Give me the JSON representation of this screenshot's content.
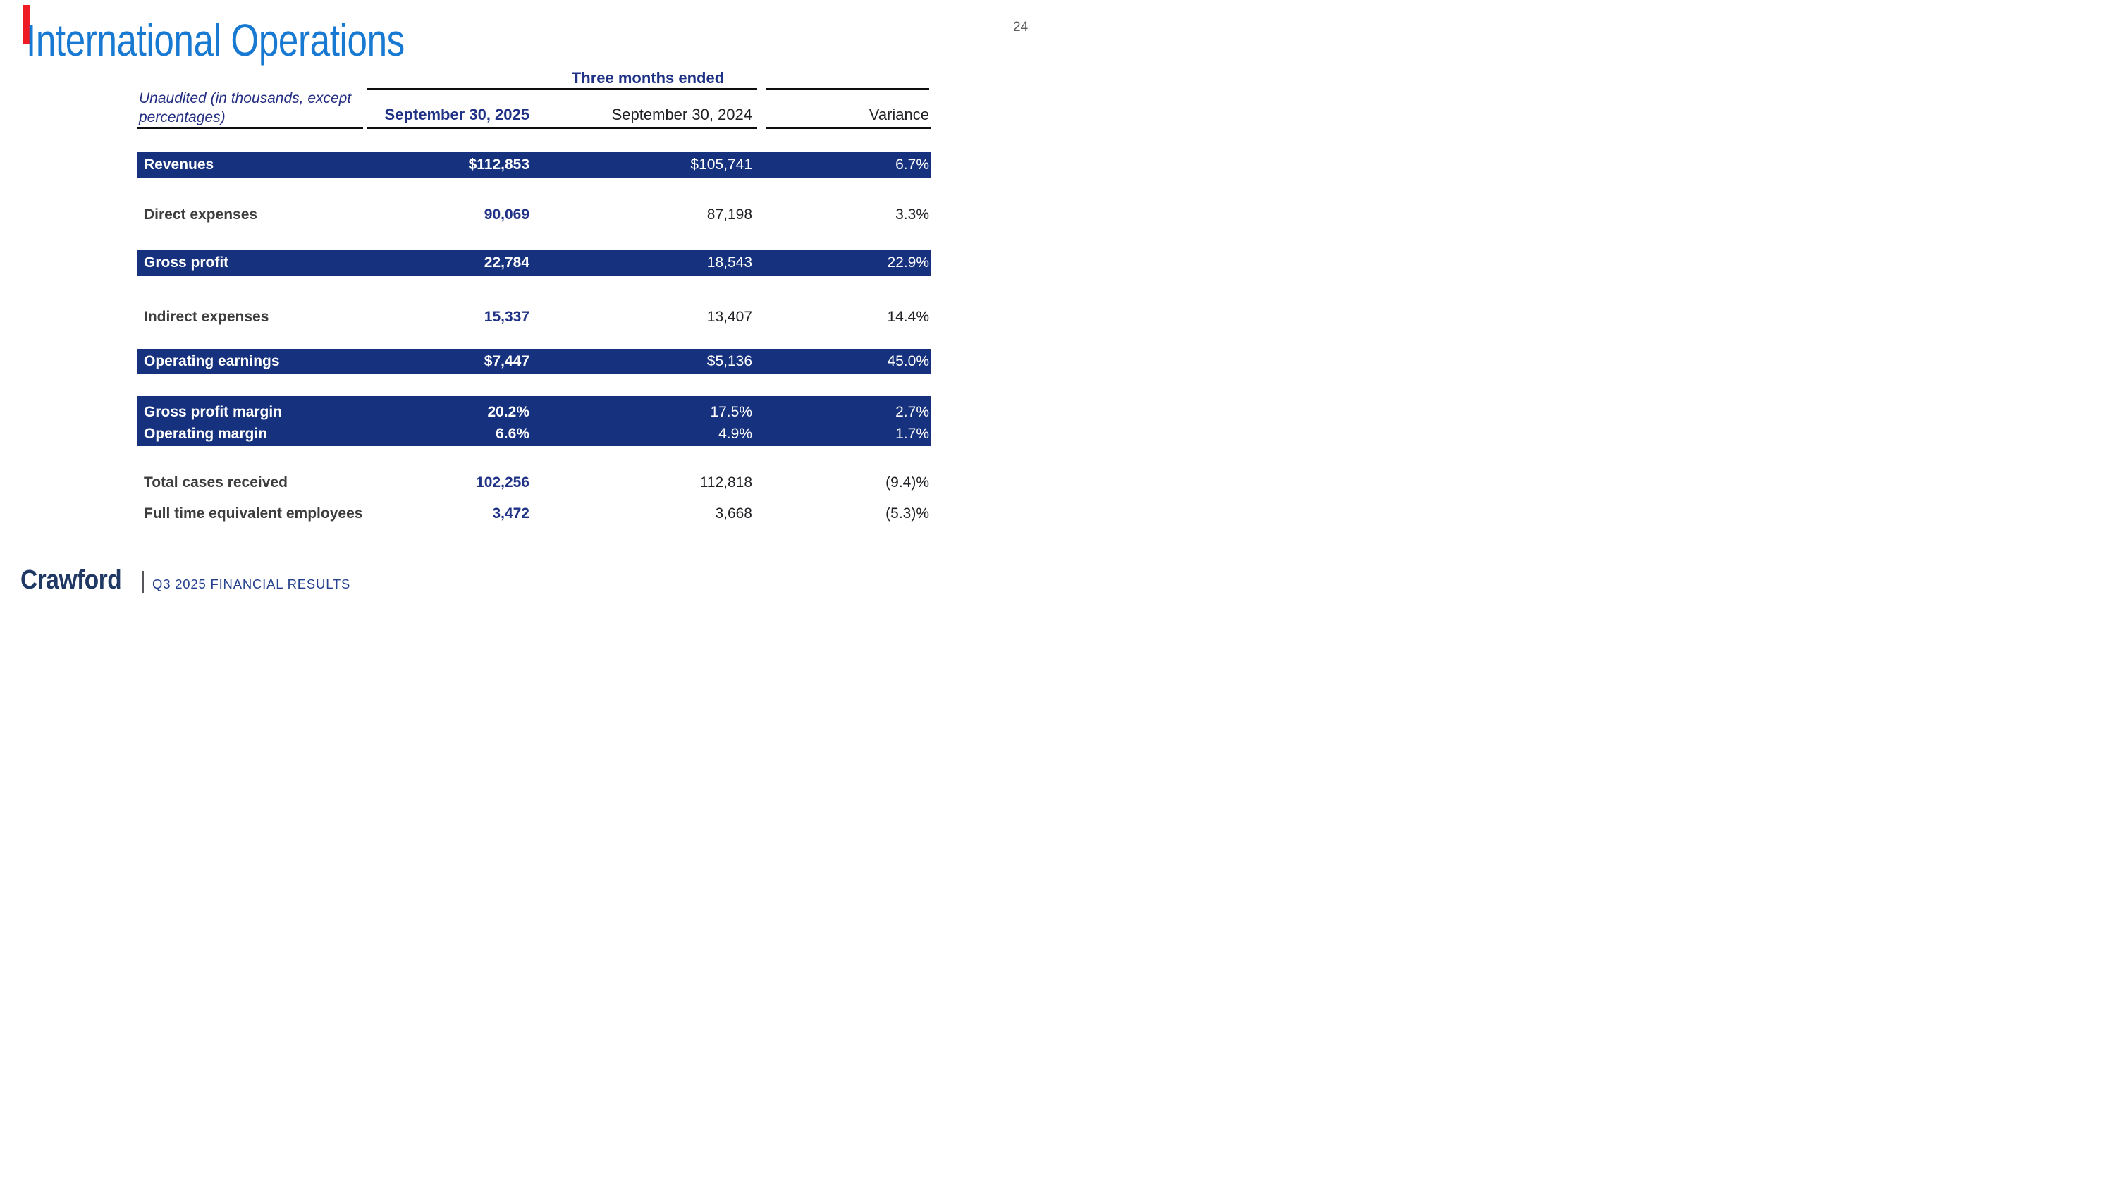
{
  "page_number": "24",
  "title": "International Operations",
  "table": {
    "group_header": "Three months ended",
    "note_line1": "Unaudited (in thousands, except",
    "note_line2": "percentages)",
    "col_headers": {
      "c2025": "September 30, 2025",
      "c2024": "September 30, 2024",
      "variance": "Variance"
    },
    "rows": [
      {
        "label": "Revenues",
        "v2025": "$112,853",
        "v2024": "$105,741",
        "variance": "6.7%",
        "highlight": true
      },
      {
        "label": "Direct expenses",
        "v2025": "90,069",
        "v2024": "87,198",
        "variance": "3.3%",
        "highlight": false
      },
      {
        "label": "Gross profit",
        "v2025": "22,784",
        "v2024": "18,543",
        "variance": "22.9%",
        "highlight": true
      },
      {
        "label": "Indirect expenses",
        "v2025": "15,337",
        "v2024": "13,407",
        "variance": "14.4%",
        "highlight": false
      },
      {
        "label": "Operating earnings",
        "v2025": "$7,447",
        "v2024": "$5,136",
        "variance": "45.0%",
        "highlight": true
      },
      {
        "label": "Gross profit margin",
        "v2025": "20.2%",
        "v2024": "17.5%",
        "variance": "2.7%",
        "highlight": true
      },
      {
        "label": "Operating margin",
        "v2025": "6.6%",
        "v2024": "4.9%",
        "variance": "1.7%",
        "highlight": true
      },
      {
        "label": "Total cases received",
        "v2025": "102,256",
        "v2024": "112,818",
        "variance": "(9.4)%",
        "highlight": false
      },
      {
        "label": "Full time equivalent employees",
        "v2025": "3,472",
        "v2024": "3,668",
        "variance": "(5.3)%",
        "highlight": false
      }
    ]
  },
  "footer": {
    "logo_text": "Crawford",
    "caption": "Q3 2025 FINANCIAL RESULTS"
  },
  "colors": {
    "title_blue": "#1779D1",
    "band_navy": "#16317D",
    "accent_red": "#EE1B24",
    "value_navy": "#1F3286",
    "footer_navy": "#1F3864",
    "caption_navy": "#24418E"
  }
}
